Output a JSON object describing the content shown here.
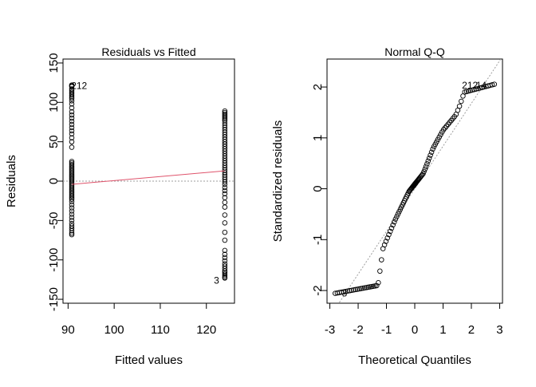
{
  "chart_data": [
    {
      "type": "scatter",
      "title": "Residuals vs Fitted",
      "xlabel": "Fitted values",
      "ylabel": "Residuals",
      "xlim": [
        88.9,
        126.1
      ],
      "ylim": [
        -155,
        155
      ],
      "xticks": [
        90,
        100,
        110,
        120
      ],
      "yticks": [
        -150,
        -100,
        -50,
        0,
        50,
        100,
        150
      ],
      "grid": false,
      "series": [
        {
          "x_group": 90.8,
          "values": [
            122,
            121,
            120,
            117,
            115,
            113,
            111,
            109,
            107,
            105,
            102,
            98,
            93,
            88,
            84,
            80,
            76,
            72,
            68,
            64,
            60,
            55,
            50,
            43,
            25,
            23,
            21,
            19,
            17,
            15,
            13,
            11,
            9,
            7,
            5,
            3,
            1,
            -1,
            -3,
            -5,
            -7,
            -9,
            -11,
            -13,
            -15,
            -17,
            -19,
            -21,
            -23,
            -26,
            -30,
            -34,
            -38,
            -42,
            -46,
            -50,
            -54,
            -57,
            -60,
            -63,
            -66,
            -68
          ]
        },
        {
          "x_group": 124.0,
          "values": [
            89,
            87,
            85,
            83,
            81,
            79,
            77,
            74,
            71,
            68,
            65,
            62,
            59,
            56,
            53,
            50,
            47,
            44,
            41,
            38,
            35,
            32,
            29,
            26,
            23,
            20,
            17,
            14,
            11,
            8,
            5,
            2,
            -1,
            -4,
            -8,
            -12,
            -16,
            -21,
            -27,
            -33,
            -43,
            -53,
            -65,
            -75,
            -88,
            -93,
            -97,
            -101,
            -105,
            -108,
            -111,
            -114,
            -116,
            -118,
            -120,
            -122,
            -123
          ]
        }
      ],
      "smooth_line": {
        "x": [
          90.8,
          124.0
        ],
        "y": [
          -4,
          13
        ],
        "color": "#df536b"
      },
      "reference_line": {
        "y": 0,
        "style": "dotted",
        "color": "#9e9e9e"
      },
      "annotations": [
        {
          "text": "212",
          "x": 92.4,
          "y": 121
        },
        {
          "text": "3",
          "x": 122.2,
          "y": -126
        }
      ]
    },
    {
      "type": "scatter",
      "title": "Normal Q-Q",
      "xlabel": "Theoretical Quantiles",
      "ylabel": "Standardized residuals",
      "xlim": [
        -3.1,
        3.1
      ],
      "ylim": [
        -2.25,
        2.55
      ],
      "xticks": [
        -3,
        -2,
        -1,
        0,
        1,
        2,
        3
      ],
      "yticks": [
        -2,
        -1,
        0,
        1,
        2
      ],
      "grid": false,
      "points": {
        "x_range": [
          -2.85,
          2.85
        ],
        "n": 120,
        "profile": [
          [
            -2.85,
            -2.06
          ],
          [
            -1.3,
            -1.9
          ],
          [
            -1.12,
            -1.17
          ],
          [
            -0.7,
            -0.62
          ],
          [
            -0.2,
            -0.05
          ],
          [
            0.3,
            0.3
          ],
          [
            0.65,
            0.8
          ],
          [
            1.0,
            1.15
          ],
          [
            1.45,
            1.45
          ],
          [
            1.6,
            1.65
          ],
          [
            1.75,
            1.9
          ],
          [
            2.85,
            2.06
          ]
        ]
      },
      "reference_line": {
        "x": [
          -3.1,
          3.1
        ],
        "y": [
          -2.6,
          2.6
        ],
        "style": "dotted",
        "color": "#9e9e9e"
      },
      "annotations": [
        {
          "text": "212",
          "x": 1.95,
          "y": 2.03
        },
        {
          "text": "14",
          "x": 2.35,
          "y": 2.03
        },
        {
          "text": "3",
          "x": -2.48,
          "y": -2.05
        }
      ]
    }
  ]
}
